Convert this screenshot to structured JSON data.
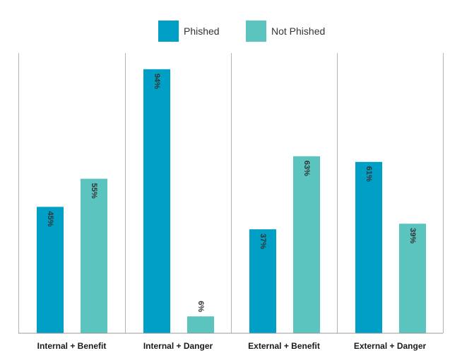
{
  "chart_data": {
    "type": "bar",
    "categories": [
      "Internal + Benefit",
      "Internal + Danger",
      "External + Benefit",
      "External + Danger"
    ],
    "series": [
      {
        "name": "Phished",
        "values": [
          45,
          94,
          37,
          61
        ],
        "labels": [
          "45%",
          "94%",
          "37%",
          "61%"
        ]
      },
      {
        "name": "Not Phished",
        "values": [
          55,
          6,
          63,
          39
        ],
        "labels": [
          "55%",
          "6%",
          "63%",
          "39%"
        ]
      }
    ],
    "ylim": [
      0,
      100
    ],
    "value_labels": "rotated-vertical",
    "grid": "vertical-separators",
    "legend_position": "top-center",
    "title": "",
    "xlabel": "",
    "ylabel": ""
  },
  "colors": {
    "phished": "#00a0c6",
    "not_phished": "#5cc4be",
    "separator": "#b3b3b3",
    "baseline": "#9a9a9a"
  }
}
